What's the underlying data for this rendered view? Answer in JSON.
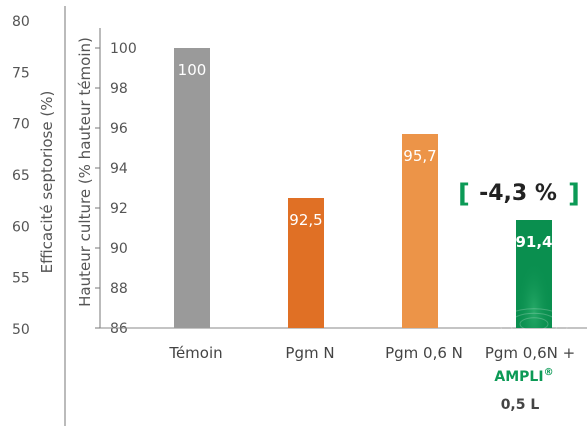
{
  "colors": {
    "grey": "#9a9a9a",
    "orange_dark": "#e07025",
    "orange_light": "#ec9448",
    "green": "#0a8f4f",
    "green_text": "#0c9a56",
    "axis": "#777777",
    "text": "#555555"
  },
  "chart_data": {
    "type": "bar",
    "categories": [
      "Témoin",
      "Pgm N",
      "Pgm 0,6 N",
      "Pgm 0,6N +"
    ],
    "category_extra": {
      "product": "AMPLI",
      "registered": "®",
      "dose": "0,5 L"
    },
    "values": [
      100,
      92.5,
      95.7,
      91.4
    ],
    "value_labels": [
      "100",
      "92,5",
      "95,7",
      "91,4"
    ],
    "bar_colors": [
      "#9a9a9a",
      "#e07025",
      "#ec9448",
      "#0a8f4f"
    ],
    "ylabel": "Hauteur culture (% hauteur témoin)",
    "ylim": [
      86,
      101
    ],
    "yticks": [
      86,
      88,
      90,
      92,
      94,
      96,
      98,
      100
    ],
    "secondary_axis": {
      "label": "Efficacité septoriose (%)",
      "ticks": [
        50,
        55,
        60,
        65,
        70,
        75,
        80
      ]
    },
    "annotation": {
      "open": "[",
      "text": "-4,3 %",
      "close": "]"
    },
    "grid": false,
    "legend": "none"
  }
}
